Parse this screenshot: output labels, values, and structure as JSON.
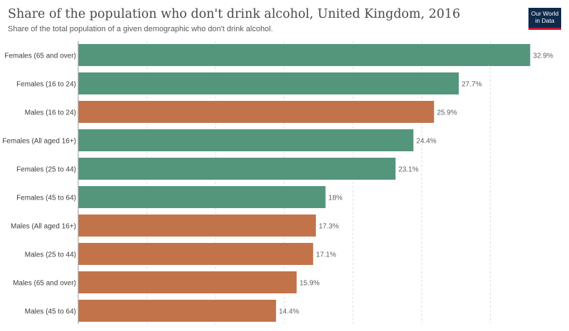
{
  "header": {
    "title": "Share of the population who don't drink alcohol, United Kingdom, 2016",
    "subtitle": "Share of the total population of a given demographic who don't drink alcohol."
  },
  "logo": {
    "line1": "Our World",
    "line2": "in Data",
    "bg_color": "#0f2a4a",
    "accent_color": "#c3172f"
  },
  "colors": {
    "female": "#54967c",
    "male": "#c2734a",
    "grid": "#dddddd",
    "label": "#3d3d3d",
    "value_label": "#5f5f5f"
  },
  "chart_data": {
    "type": "bar",
    "orientation": "horizontal",
    "categories": [
      "Females (65 and over)",
      "Females (16 to 24)",
      "Males (16 to 24)",
      "Females (All aged 16+)",
      "Females (25 to 44)",
      "Females (45 to 64)",
      "Males (All aged 16+)",
      "Males (25 to 44)",
      "Males (65 and over)",
      "Males (45 to 64)"
    ],
    "values": [
      32.9,
      27.7,
      25.9,
      24.4,
      23.1,
      18,
      17.3,
      17.1,
      15.9,
      14.4
    ],
    "value_labels": [
      "32.9%",
      "27.7%",
      "25.9%",
      "24.4%",
      "23.1%",
      "18%",
      "17.3%",
      "17.1%",
      "15.9%",
      "14.4%"
    ],
    "groups": [
      "female",
      "female",
      "male",
      "female",
      "female",
      "female",
      "male",
      "male",
      "male",
      "male"
    ],
    "xlim": [
      0,
      35
    ],
    "grid_step": 5,
    "grid": true
  }
}
